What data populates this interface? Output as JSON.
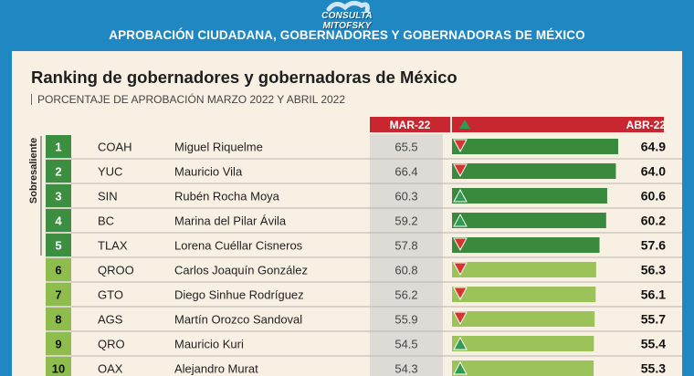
{
  "header": {
    "brand": "CONSULTA MITOFSKY",
    "banner": "APROBACIÓN CIUDADANA, GOBERNADORES Y GOBERNADORAS DE MÉXICO"
  },
  "colors": {
    "background": "#1f87c2",
    "panel": "#f8f0e2",
    "header_red": "#c8272f",
    "bar_dark_green": "#3a8a3e",
    "bar_light_green": "#9cc35a",
    "rank_dark_green": "#3c8f41",
    "rank_light_green": "#8ebd4e",
    "mar_column": "#dedad5",
    "arrow_down": "#d8332d",
    "arrow_up": "#2e9c52"
  },
  "chart_data": {
    "type": "bar",
    "title": "Ranking de gobernadores y gobernadoras de México",
    "subtitle": "PORCENTAJE DE APROBACIÓN MARZO 2022 Y ABRIL 2022",
    "columns": {
      "previous": "MAR-22",
      "current": "ABR-22"
    },
    "group_label": "Sobresaliente",
    "rows": [
      {
        "rank": "1",
        "state": "COAH",
        "name": "Miguel Riquelme",
        "mar": 65.5,
        "abr": 64.9,
        "trend": "down",
        "tier": "dark"
      },
      {
        "rank": "2",
        "state": "YUC",
        "name": "Mauricio Vila",
        "mar": 66.4,
        "abr": 64.0,
        "trend": "down",
        "tier": "dark"
      },
      {
        "rank": "3",
        "state": "SIN",
        "name": "Rubén Rocha Moya",
        "mar": 60.3,
        "abr": 60.6,
        "trend": "up",
        "tier": "dark"
      },
      {
        "rank": "4",
        "state": "BC",
        "name": "Marina del Pilar Ávila",
        "mar": 59.2,
        "abr": 60.2,
        "trend": "up",
        "tier": "dark"
      },
      {
        "rank": "5",
        "state": "TLAX",
        "name": "Lorena Cuéllar Cisneros",
        "mar": 57.8,
        "abr": 57.6,
        "trend": "down",
        "tier": "dark"
      },
      {
        "rank": "6",
        "state": "QROO",
        "name": "Carlos Joaquín González",
        "mar": 60.8,
        "abr": 56.3,
        "trend": "down",
        "tier": "light"
      },
      {
        "rank": "7",
        "state": "GTO",
        "name": "Diego Sinhue Rodríguez",
        "mar": 56.2,
        "abr": 56.1,
        "trend": "down",
        "tier": "light"
      },
      {
        "rank": "8",
        "state": "AGS",
        "name": "Martín Orozco Sandoval",
        "mar": 55.9,
        "abr": 55.7,
        "trend": "down",
        "tier": "light"
      },
      {
        "rank": "9",
        "state": "QRO",
        "name": "Mauricio Kuri",
        "mar": 54.5,
        "abr": 55.4,
        "trend": "up",
        "tier": "light"
      },
      {
        "rank": "10",
        "state": "OAX",
        "name": "Alejandro Murat",
        "mar": 54.3,
        "abr": 55.3,
        "trend": "up",
        "tier": "light"
      }
    ]
  }
}
